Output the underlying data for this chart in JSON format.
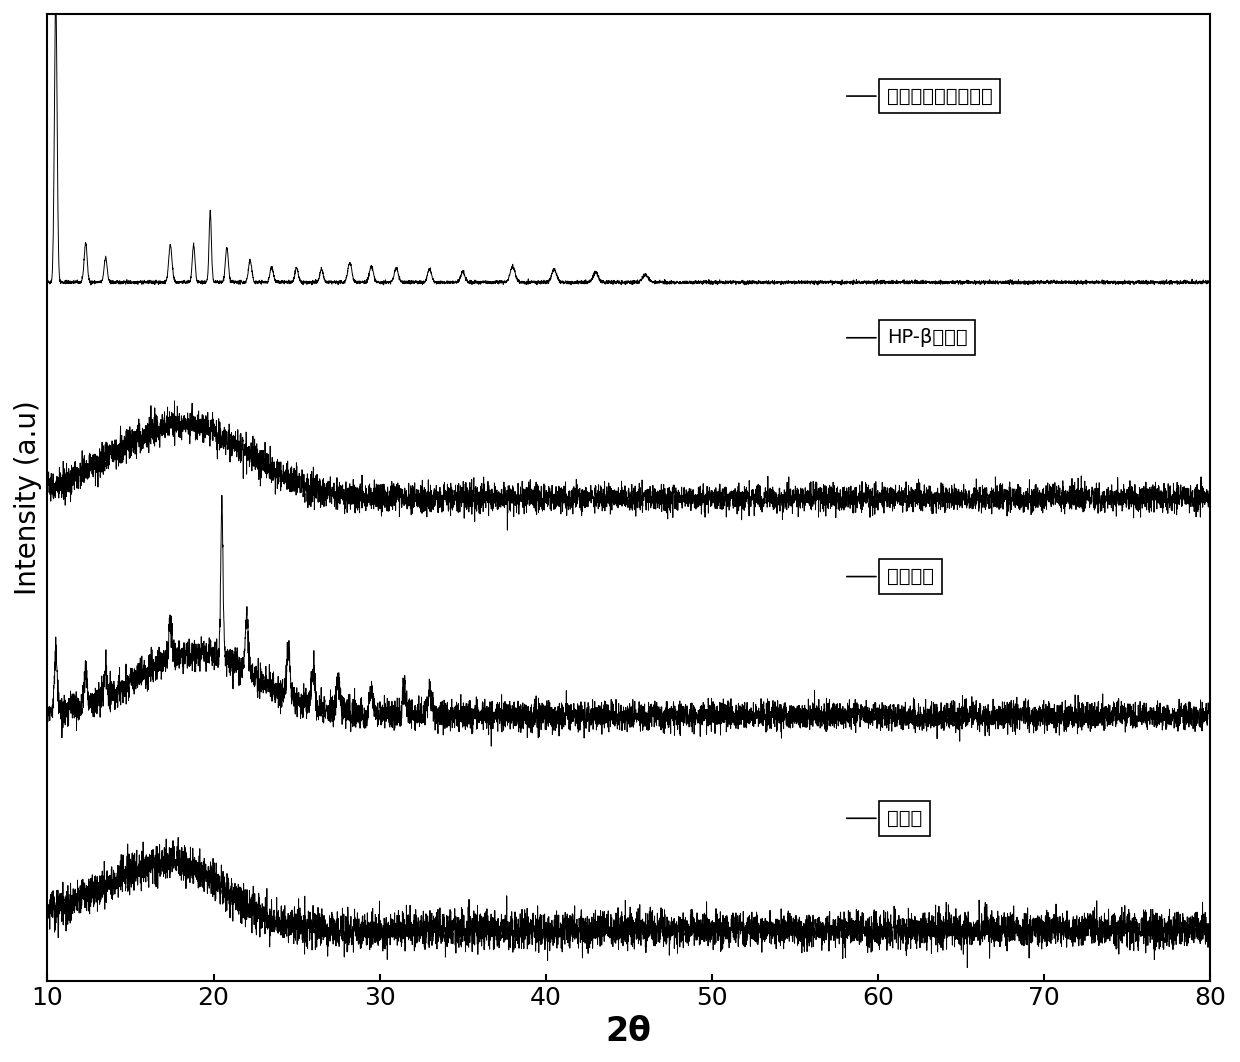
{
  "xlabel": "2θ",
  "ylabel": "Intensity (a.u)",
  "xlim": [
    10,
    80
  ],
  "xlabel_fontsize": 24,
  "ylabel_fontsize": 20,
  "tick_fontsize": 18,
  "legend_labels": [
    "吵嘎烷基喧嘎氧化物",
    "HP-β环糊精",
    "机械混合",
    "包合物"
  ],
  "offsets": [
    3.2,
    2.1,
    1.05,
    0.0
  ],
  "background_color": "#ffffff",
  "line_color": "#000000",
  "line_width": 0.7,
  "seed": 42
}
